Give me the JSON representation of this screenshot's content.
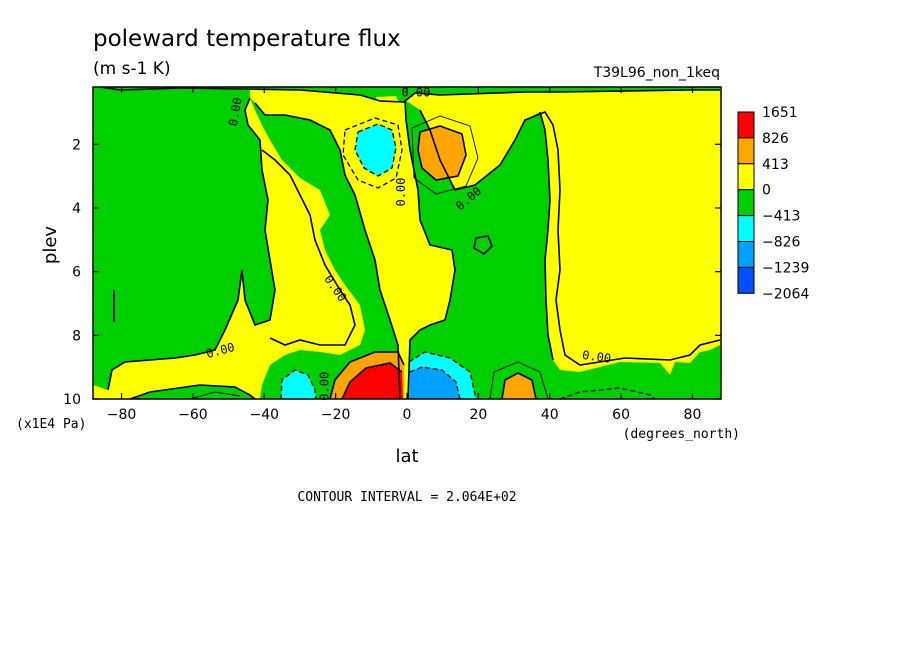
{
  "chart_data": {
    "type": "heatmap",
    "title": "poleward temperature flux",
    "units": "(m s-1 K)",
    "run_label": "T39L96_non_1keq",
    "xlabel": "lat",
    "xunits": "(degrees_north)",
    "ylabel": "plev",
    "yunits": "(x1E4 Pa)",
    "xlim": [
      -88,
      88
    ],
    "ylim": [
      10,
      0.2
    ],
    "x_ticks": [
      -80,
      -60,
      -40,
      -20,
      0,
      20,
      40,
      60,
      80
    ],
    "y_ticks": [
      2,
      4,
      6,
      8,
      10
    ],
    "contour_interval_text": "CONTOUR INTERVAL = 2.064E+02",
    "contour_labels": [
      "0.00",
      "0.00",
      "0.00",
      "0.00",
      "0.00",
      "0.00",
      "0.00",
      "0.00"
    ],
    "levels": [
      {
        "label": "1651",
        "color": "#ff0000"
      },
      {
        "label": "826",
        "color": "#ffa500"
      },
      {
        "label": "413",
        "color": "#ffff00"
      },
      {
        "label": "0",
        "color": "#00d000"
      },
      {
        "label": "-413",
        "color": "#00ffff"
      },
      {
        "label": "-826",
        "color": "#00a0ff"
      },
      {
        "label": "-1239",
        "color": "#0050ff"
      },
      {
        "label": "-2064",
        "color": ""
      }
    ],
    "colors": {
      "pos_strong": "#ff0000",
      "pos_mid": "#ffa500",
      "pos_weak": "#ffff00",
      "neg_weak": "#00d000",
      "neg_mid": "#00ffff",
      "neg_strong": "#00a0ff",
      "neg_max": "#0050ff"
    }
  }
}
